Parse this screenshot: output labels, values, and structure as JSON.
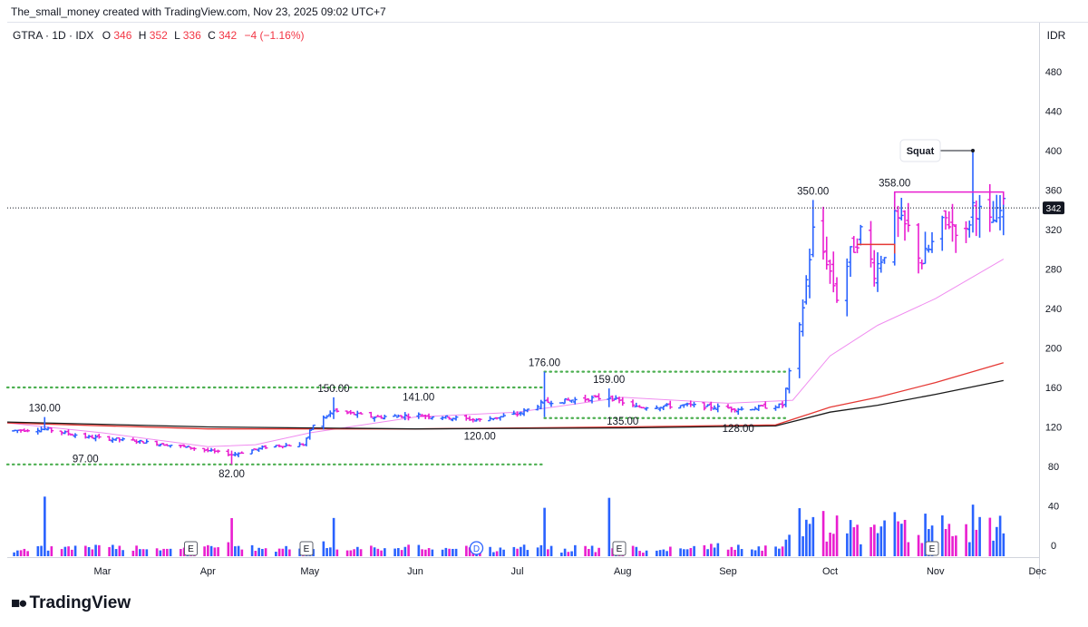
{
  "header": {
    "created_by": "The_small_money created with TradingView.com, Nov 23, 2025 09:02 UTC+7"
  },
  "legend": {
    "symbol": "GTRA · 1D · IDX",
    "o_label": "O",
    "o_value": "346",
    "h_label": "H",
    "h_value": "352",
    "l_label": "L",
    "l_value": "336",
    "c_label": "C",
    "c_value": "342",
    "change": "−4 (−1.16%)"
  },
  "currency": "IDR",
  "brand": "TradingView",
  "colors": {
    "up": "#2962ff",
    "down": "#e91ed0",
    "ma_fast": "#f08cf0",
    "ma_mid": "#e53935",
    "ma_slow": "#1a1a1a",
    "level_dots": "#4caf50",
    "annotation": "#e91ed0"
  },
  "chart_data": {
    "type": "candlestick",
    "title": "GTRA · 1D · IDX",
    "y_axis": {
      "unit": "IDR",
      "ticks": [
        480,
        440,
        400,
        360,
        320,
        280,
        240,
        200,
        160,
        120,
        80,
        40,
        0
      ]
    },
    "x_axis": {
      "ticks": [
        "Mar",
        "Apr",
        "May",
        "Jun",
        "Jul",
        "Aug",
        "Sep",
        "Oct",
        "Nov",
        "Dec"
      ]
    },
    "last_price": 342,
    "ohlc_last": {
      "open": 346,
      "high": 352,
      "low": 336,
      "close": 342
    },
    "price_labels": [
      {
        "text": "130.00",
        "date": "2025-02-12",
        "price": 130
      },
      {
        "text": "97.00",
        "date": "2025-02-24",
        "price": 97
      },
      {
        "text": "82.00",
        "date": "2025-04-08",
        "price": 82
      },
      {
        "text": "150.00",
        "date": "2025-05-08",
        "price": 150
      },
      {
        "text": "141.00",
        "date": "2025-06-02",
        "price": 141
      },
      {
        "text": "120.00",
        "date": "2025-06-20",
        "price": 120
      },
      {
        "text": "176.00",
        "date": "2025-07-09",
        "price": 176
      },
      {
        "text": "159.00",
        "date": "2025-07-28",
        "price": 159
      },
      {
        "text": "135.00",
        "date": "2025-08-01",
        "price": 135
      },
      {
        "text": "128.00",
        "date": "2025-09-04",
        "price": 128
      },
      {
        "text": "350.00",
        "date": "2025-09-26",
        "price": 350
      },
      {
        "text": "358.00",
        "date": "2025-10-20",
        "price": 358
      }
    ],
    "annotations": [
      {
        "text": "Squat",
        "date": "2025-11-12",
        "price": 400
      }
    ],
    "event_markers": [
      {
        "text": "E",
        "date": "2025-03-27"
      },
      {
        "text": "E",
        "date": "2025-04-30"
      },
      {
        "text": "D",
        "date": "2025-06-19"
      },
      {
        "text": "E",
        "date": "2025-07-31"
      },
      {
        "text": "E",
        "date": "2025-10-31"
      }
    ],
    "support_resistance_levels": [
      {
        "price": 160,
        "from": "2025-02-01",
        "to": "2025-07-09"
      },
      {
        "price": 82,
        "from": "2025-02-01",
        "to": "2025-07-09"
      },
      {
        "price": 176,
        "from": "2025-07-09",
        "to": "2025-09-18"
      },
      {
        "price": 129,
        "from": "2025-07-09",
        "to": "2025-09-18"
      }
    ],
    "range_boxes": [
      {
        "price": 305,
        "from": "2025-10-09",
        "to": "2025-10-20"
      },
      {
        "price": 358,
        "from": "2025-10-20",
        "to": "2025-11-21"
      }
    ],
    "moving_averages": [
      {
        "name": "fast",
        "points": [
          [
            "2025-02-01",
            124
          ],
          [
            "2025-03-01",
            114
          ],
          [
            "2025-04-01",
            100
          ],
          [
            "2025-04-15",
            102
          ],
          [
            "2025-05-01",
            114
          ],
          [
            "2025-06-01",
            130
          ],
          [
            "2025-07-01",
            135
          ],
          [
            "2025-08-01",
            150
          ],
          [
            "2025-09-01",
            144
          ],
          [
            "2025-09-20",
            147
          ],
          [
            "2025-10-01",
            192
          ],
          [
            "2025-10-15",
            223
          ],
          [
            "2025-11-01",
            250
          ],
          [
            "2025-11-21",
            290
          ]
        ]
      },
      {
        "name": "mid",
        "points": [
          [
            "2025-02-01",
            124
          ],
          [
            "2025-04-01",
            118
          ],
          [
            "2025-06-01",
            118
          ],
          [
            "2025-08-01",
            120
          ],
          [
            "2025-09-15",
            122
          ],
          [
            "2025-10-01",
            140
          ],
          [
            "2025-10-15",
            150
          ],
          [
            "2025-11-01",
            165
          ],
          [
            "2025-11-21",
            185
          ]
        ]
      },
      {
        "name": "slow",
        "points": [
          [
            "2025-02-01",
            125
          ],
          [
            "2025-04-01",
            120
          ],
          [
            "2025-06-01",
            118
          ],
          [
            "2025-08-01",
            119
          ],
          [
            "2025-09-15",
            121
          ],
          [
            "2025-10-01",
            135
          ],
          [
            "2025-10-15",
            142
          ],
          [
            "2025-11-01",
            153
          ],
          [
            "2025-11-21",
            167
          ]
        ]
      }
    ],
    "volume_scale_max": 120
  }
}
